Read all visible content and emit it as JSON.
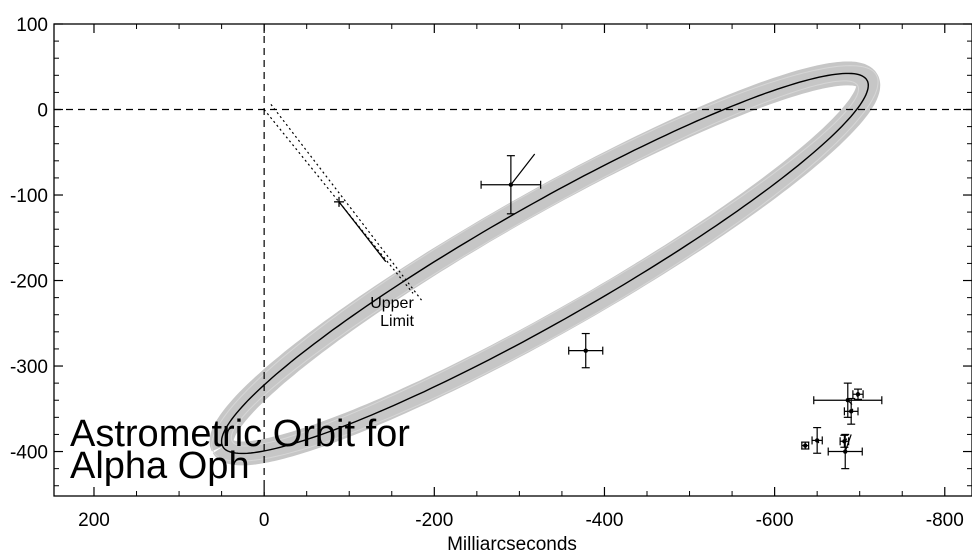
{
  "chart_data": {
    "type": "scatter",
    "title": "Astrometric Orbit for",
    "subtitle": "Alpha Oph",
    "xlabel": "Milliarcseconds",
    "ylabel": "",
    "xlim": [
      247,
      -832
    ],
    "ylim": [
      -452,
      100
    ],
    "x_ticks": [
      {
        "value": 200,
        "label": "200"
      },
      {
        "value": 0,
        "label": "0"
      },
      {
        "value": -200,
        "label": "-200"
      },
      {
        "value": -400,
        "label": "-400"
      },
      {
        "value": -600,
        "label": "-600"
      },
      {
        "value": -800,
        "label": "-800"
      }
    ],
    "y_ticks": [
      {
        "value": 100,
        "label": "100"
      },
      {
        "value": 0,
        "label": "0"
      },
      {
        "value": -100,
        "label": "-100"
      },
      {
        "value": -200,
        "label": "-200"
      },
      {
        "value": -300,
        "label": "-300"
      },
      {
        "value": -400,
        "label": "-400"
      }
    ],
    "reference_lines": {
      "x": 0,
      "y": 0,
      "style": "dashed"
    },
    "orbit": {
      "center": [
        -330,
        -180
      ],
      "semi_axis_major": 435,
      "semi_axis_minor": 68,
      "angle_deg": -29.5,
      "band_half_width": 14,
      "band_color": "#c6c6c6",
      "line_color": "#000000"
    },
    "upper_limit": {
      "label_line1": "Upper",
      "label_line2": "Limit",
      "anchor": [
        -175,
        -215
      ],
      "point": [
        -88,
        -108
      ],
      "dotted_from": [
        0,
        0
      ],
      "solid_segment_to": [
        -143,
        -178
      ]
    },
    "points": [
      {
        "x": -290,
        "y": -88,
        "xerr": 35,
        "yerr": 34,
        "model": [
          -318,
          -52
        ]
      },
      {
        "x": -378,
        "y": -282,
        "xerr": 20,
        "yerr": 20,
        "model": [
          -378,
          -284
        ]
      },
      {
        "x": -636,
        "y": -393,
        "xerr": 4,
        "yerr": 4,
        "model": [
          -634,
          -392
        ]
      },
      {
        "x": -650,
        "y": -387,
        "xerr": 6,
        "yerr": 15,
        "model": [
          -652,
          -390
        ]
      },
      {
        "x": -682,
        "y": -388,
        "xerr": 5,
        "yerr": 7,
        "model": [
          -685,
          -385
        ]
      },
      {
        "x": -683,
        "y": -400,
        "xerr": 20,
        "yerr": 20,
        "model": [
          -690,
          -380
        ]
      },
      {
        "x": -686,
        "y": -340,
        "xerr": 40,
        "yerr": 20,
        "model": [
          -691,
          -345
        ]
      },
      {
        "x": -690,
        "y": -353,
        "xerr": 8,
        "yerr": 15,
        "model": [
          -692,
          -350
        ]
      },
      {
        "x": -698,
        "y": -333,
        "xerr": 6,
        "yerr": 6,
        "model": [
          -697,
          -336
        ]
      }
    ]
  }
}
